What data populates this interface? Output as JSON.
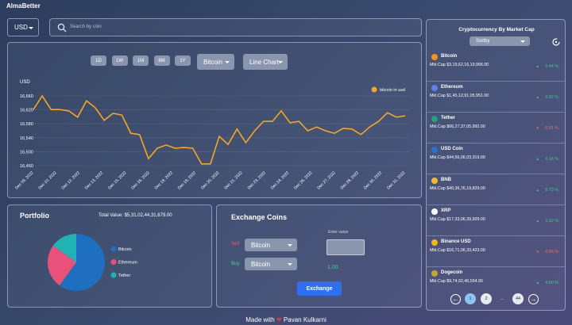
{
  "header": {
    "logo": "AlmaBetter",
    "currency": "USD",
    "search_placeholder": "Search by coin"
  },
  "line_chart": {
    "type": "line",
    "timeframes": [
      "1D",
      "1W",
      "1M",
      "6M",
      "1Y"
    ],
    "coin_select": "Bitcoin",
    "chart_type_select": "Line Chart",
    "y_label": "USD",
    "ylim": [
      16450,
      16670
    ],
    "yticks": [
      {
        "value": 16660,
        "label": "16,660"
      },
      {
        "value": 16620,
        "label": "16,620"
      },
      {
        "value": 16580,
        "label": "16,580"
      },
      {
        "value": 16540,
        "label": "16,540"
      },
      {
        "value": 16500,
        "label": "16,500"
      },
      {
        "value": 16460,
        "label": "16,460"
      }
    ],
    "xtick_labels": [
      "Dec 09, 2022",
      "Dec 10, 2022",
      "Dec 12, 2022",
      "Dec 13, 2022",
      "Dec 15, 2022",
      "Dec 16, 2022",
      "Dec 18, 2022",
      "Dec 19, 2022",
      "Dec 20, 2022",
      "Dec 21, 2022",
      "Dec 23, 2022",
      "Dec 24, 2022",
      "Dec 26, 2022",
      "Dec 27, 2022",
      "Dec 28, 2022",
      "Dec 30, 2022",
      "Dec 31, 2022"
    ],
    "grid": true,
    "series": [
      {
        "name": "bitcoin in usd",
        "color": "#f5a623",
        "values": [
          16621,
          16660,
          16621,
          16621,
          16617,
          16599,
          16646,
          16626,
          16590,
          16610,
          16605,
          16553,
          16549,
          16480,
          16510,
          16519,
          16510,
          16512,
          16510,
          16465,
          16465,
          16544,
          16521,
          16565,
          16526,
          16560,
          16587,
          16587,
          16617,
          16583,
          16587,
          16560,
          16571,
          16560,
          16553,
          16567,
          16565,
          16549,
          16571,
          16587,
          16612,
          16599,
          16603
        ]
      }
    ]
  },
  "portfolio": {
    "title": "Portfolio",
    "total_value": "Total Value: $5,31,02,44,31,679.00",
    "pie": {
      "type": "pie",
      "categories": [
        "Bitcoin",
        "Ethereum",
        "Tether"
      ],
      "values": [
        60,
        25,
        15
      ],
      "colors": [
        "#1f6fc0",
        "#e8527a",
        "#1fb3b3"
      ]
    }
  },
  "exchange": {
    "title": "Exchange Coins",
    "sell_label": "Sell",
    "buy_label": "Buy",
    "sell_coin": "Bitcoin",
    "buy_coin": "Bitcoin",
    "enter_value": "Enter value",
    "result": "1.00",
    "button": "Exchange"
  },
  "sidebar": {
    "title": "Cryptocurrency By Market Cap",
    "sort": "Sortby",
    "coins": [
      {
        "name": "Bitcoin",
        "market_cap": "Mkt.Cap $3,19,62,16,19,956.00",
        "change": "0.44 %"
      },
      {
        "name": "Ethereum",
        "market_cap": "Mkt.Cap $1,45,12,91,05,951.00",
        "change": "0.02 %"
      },
      {
        "name": "Tether",
        "market_cap": "Mkt.Cap $66,27,37,05,992.00",
        "change": "-0.01 %"
      },
      {
        "name": "USD Coin",
        "market_cap": "Mkt.Cap $44,56,06,03,319.00",
        "change": "0.16 %"
      },
      {
        "name": "BNB",
        "market_cap": "Mkt.Cap $40,36,76,19,829.00",
        "change": "0.73 %"
      },
      {
        "name": "XRP",
        "market_cap": "Mkt.Cap $17,33,06,39,509.00",
        "change": "1.12 %"
      },
      {
        "name": "Binance USD",
        "market_cap": "Mkt.Cap $16,71,06,33,423.00",
        "change": "-0.66 %"
      },
      {
        "name": "Dogecoin",
        "market_cap": "Mkt.Cap $9,74,92,46,554.00",
        "change": "4.60 %"
      }
    ],
    "pages": [
      "1",
      "2",
      "...",
      "44"
    ]
  },
  "footer": {
    "made_with": "Made with",
    "author": "Pavan Kulkarni"
  }
}
